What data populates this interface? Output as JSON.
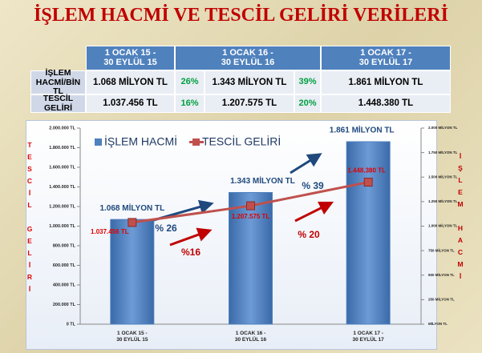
{
  "title": "İŞLEM HACMİ VE TESCİL GELİRİ VERİLERİ",
  "table": {
    "columns": [
      "1 OCAK 15 -\n30 EYLÜL 15",
      "1 OCAK 16 -\n30 EYLÜL 16",
      "1 OCAK 17 -\n30 EYLÜL 17"
    ],
    "rows": [
      {
        "label": "İŞLEM\nHACMİ/BİN TL",
        "cells": [
          "1.068 MİLYON TL",
          "26%",
          "1.343 MİLYON TL",
          "39%",
          "1.861 MİLYON TL"
        ]
      },
      {
        "label": "TESCİL GELİRİ",
        "cells": [
          "1.037.456 TL",
          "16%",
          "1.207.575 TL",
          "20%",
          "1.448.380 TL"
        ]
      }
    ]
  },
  "chart_data": {
    "type": "bar",
    "categories": [
      "1 OCAK 15 -\n30 EYLÜL 15",
      "1 OCAK 16 -\n30 EYLÜL 16",
      "1 OCAK 17 -\n30 EYLÜL 17"
    ],
    "series": [
      {
        "name": "İŞLEM HACMİ",
        "type": "bar",
        "axis": "y2",
        "color": "#4f81bd",
        "values": [
          1068,
          1343,
          1861
        ],
        "value_labels": [
          "1.068 MİLYON TL",
          "1.343 MİLYON TL",
          "1.861 MİLYON TL"
        ]
      },
      {
        "name": "TESCİL GELİRİ",
        "type": "line",
        "color": "#c0504d",
        "values": [
          1037456,
          1207575,
          1448380
        ],
        "value_labels": [
          "1.037.456 TL",
          "1.207.575 TL",
          "1.448.380 TL"
        ]
      }
    ],
    "ylabel": "TESCİL GELİRİ",
    "y2label": "İŞLEM HACMİ",
    "ylim": [
      0,
      2000000
    ],
    "yticks": [
      {
        "value": 0,
        "label": "0 TL"
      },
      {
        "value": 200000,
        "label": "200.000 TL"
      },
      {
        "value": 400000,
        "label": "400.000 TL"
      },
      {
        "value": 600000,
        "label": "600.000 TL"
      },
      {
        "value": 800000,
        "label": "800.000 TL"
      },
      {
        "value": 1000000,
        "label": "1.000.000 TL"
      },
      {
        "value": 1200000,
        "label": "1.200.000 TL"
      },
      {
        "value": 1400000,
        "label": "1.400.000 TL"
      },
      {
        "value": 1600000,
        "label": "1.600.000 TL"
      },
      {
        "value": 1800000,
        "label": "1.800.000 TL"
      },
      {
        "value": 2000000,
        "label": "2.000.000 TL"
      }
    ],
    "y2lim": [
      0,
      2000
    ],
    "y2ticks": [
      {
        "value": 0,
        "label": "MİLYON TL"
      },
      {
        "value": 250,
        "label": "250 MİLYON TL"
      },
      {
        "value": 500,
        "label": "500 MİLYON TL"
      },
      {
        "value": 750,
        "label": "750 MİLYON TL"
      },
      {
        "value": 1000,
        "label": "1.000 MİLYON TL"
      },
      {
        "value": 1250,
        "label": "1.250 MİLYON TL"
      },
      {
        "value": 1500,
        "label": "1.500 MİLYON TL"
      },
      {
        "value": 1750,
        "label": "1.750 MİLYON TL"
      },
      {
        "value": 2000,
        "label": "2.000 MİLYON TL"
      }
    ],
    "annotations": [
      {
        "text": "% 26",
        "color": "#1f497d"
      },
      {
        "text": "% 39",
        "color": "#1f497d"
      },
      {
        "text": "%16",
        "color": "#c00000"
      },
      {
        "text": "% 20",
        "color": "#c00000"
      }
    ]
  }
}
